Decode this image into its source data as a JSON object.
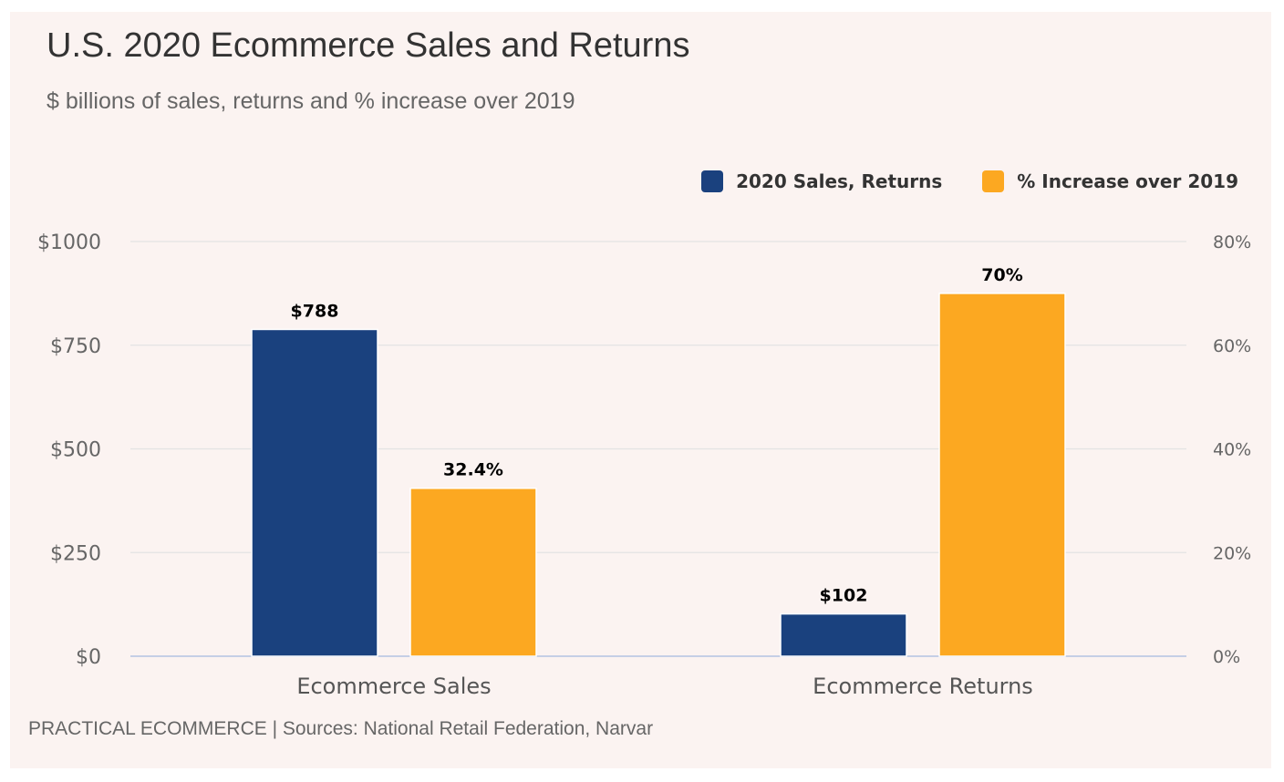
{
  "chart_data": {
    "type": "bar",
    "title": "U.S. 2020 Ecommerce Sales and Returns",
    "subtitle": "$ billions of sales, returns and % increase over 2019",
    "categories": [
      "Ecommerce Sales",
      "Ecommerce Returns"
    ],
    "series": [
      {
        "name": "2020 Sales, Returns",
        "axis": "left",
        "color": "#1a417e",
        "values": [
          788,
          102
        ],
        "labels": [
          "$788",
          "$102"
        ]
      },
      {
        "name": "% Increase over 2019",
        "axis": "right",
        "color": "#fca821",
        "values": [
          32.4,
          70
        ],
        "labels": [
          "32.4%",
          "70%"
        ]
      }
    ],
    "y_left": {
      "ylim": [
        0,
        1000
      ],
      "ticks": [
        0,
        250,
        500,
        750,
        1000
      ],
      "tick_labels": [
        "$0",
        "$250",
        "$500",
        "$750",
        "$1000"
      ]
    },
    "y_right": {
      "ylim": [
        0,
        80
      ],
      "ticks": [
        0,
        20,
        40,
        60,
        80
      ],
      "tick_labels": [
        "0%",
        "20%",
        "40%",
        "60%",
        "80%"
      ]
    },
    "grid": true,
    "legend": "top-right",
    "source": "PRACTICAL ECOMMERCE | Sources: National Retail Federation, Narvar"
  }
}
